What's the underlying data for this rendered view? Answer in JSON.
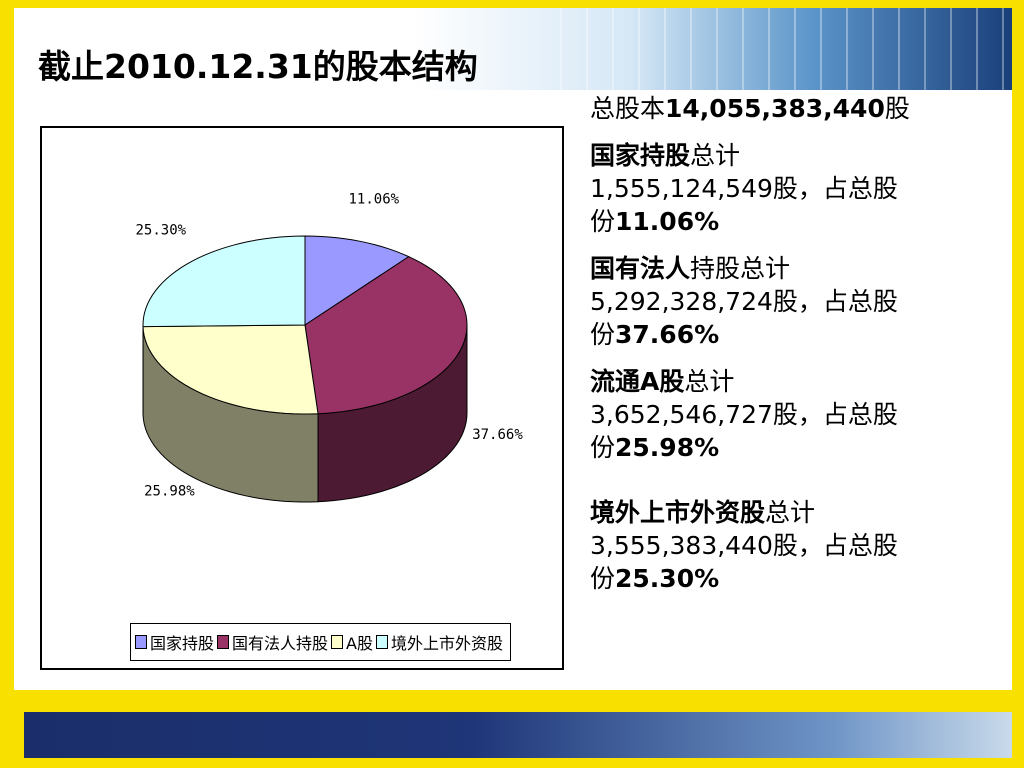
{
  "slide": {
    "title": "截止2010.12.31的股本结构"
  },
  "summary": {
    "total_prefix": "总股本",
    "total_value": "14,055,383,440",
    "total_suffix": "股"
  },
  "items": [
    {
      "name": "国家持股",
      "label_suffix": "总计",
      "shares": "1,555,124,549",
      "mid": "股，占总股",
      "pre_pct": "份",
      "percent": "11.06%"
    },
    {
      "name": "国有法人",
      "label_suffix": "持股总计",
      "shares": "5,292,328,724",
      "mid": "股，占总股",
      "pre_pct": "份",
      "percent": "37.66%"
    },
    {
      "name": "流通A股",
      "label_suffix": "总计",
      "shares": "3,652,546,727",
      "mid": "股，占总股",
      "pre_pct": "份",
      "percent": "25.98%"
    },
    {
      "name": "境外上市外资股",
      "label_suffix": "总计",
      "shares": "3,555,383,440",
      "mid": "股，占总股",
      "pre_pct": "份",
      "percent": "25.30%"
    }
  ],
  "chart_data": {
    "type": "pie",
    "style": "3d",
    "categories": [
      "国家持股",
      "国有法人持股",
      "A股",
      "境外上市外资股"
    ],
    "values": [
      11.06,
      37.66,
      25.98,
      25.3
    ],
    "data_labels": [
      "11.06%",
      "37.66%",
      "25.98%",
      "25.30%"
    ],
    "colors": [
      "#9999ff",
      "#993366",
      "#ffffcc",
      "#ccffff"
    ],
    "side_colors": [
      "#4c4c80",
      "#4d1a33",
      "#808066",
      "#668080"
    ],
    "legend_position": "bottom"
  }
}
